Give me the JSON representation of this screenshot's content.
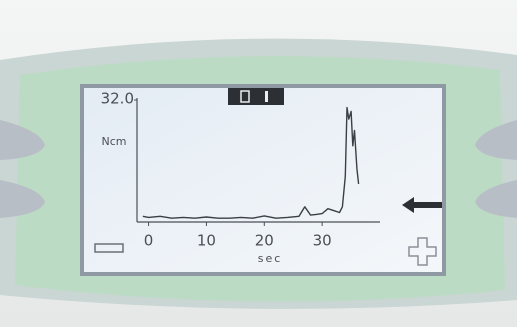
{
  "chart_data": {
    "type": "line",
    "x": [
      -1,
      0,
      2,
      4,
      6,
      8,
      10,
      12,
      14,
      16,
      18,
      20,
      22,
      24,
      26,
      27,
      28,
      29,
      30,
      31,
      32,
      33,
      33.5,
      34,
      34.3,
      34.6,
      35,
      35.3,
      35.6,
      36,
      36.3
    ],
    "series": [
      {
        "color": "#3a3f45",
        "values": [
          1.5,
          1.2,
          1.5,
          1,
          1.2,
          1,
          1.3,
          1,
          1,
          1.2,
          1,
          1.6,
          1,
          1.2,
          1.5,
          4,
          1.8,
          2,
          2.2,
          3.5,
          3,
          2.5,
          4,
          12,
          30,
          27,
          29,
          20,
          24,
          14,
          10
        ]
      }
    ],
    "xlabel": "sec",
    "ylabel": "Ncm",
    "xlim": [
      -2,
      40
    ],
    "xticks": [
      0,
      10,
      20,
      30
    ],
    "ylim": [
      0,
      32
    ],
    "yticks": [
      {
        "value": 32,
        "label": "32.0"
      }
    ]
  }
}
